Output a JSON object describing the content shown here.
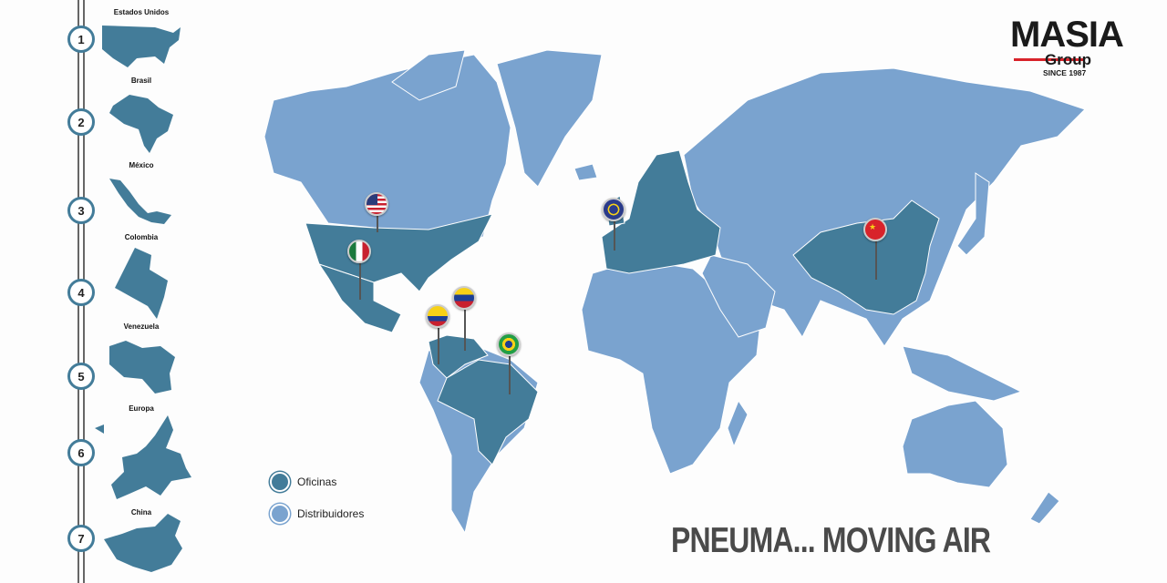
{
  "logo": {
    "name": "MASIA",
    "sub": "Group",
    "since": "SINCE 1987",
    "accent": "#d8232a"
  },
  "colors": {
    "offices": "#437c99",
    "distributors": "#7aa3cf"
  },
  "countries": [
    {
      "n": "1",
      "label": "Estados Unidos"
    },
    {
      "n": "2",
      "label": "Brasil"
    },
    {
      "n": "3",
      "label": "México"
    },
    {
      "n": "4",
      "label": "Colombia"
    },
    {
      "n": "5",
      "label": "Venezuela"
    },
    {
      "n": "6",
      "label": "Europa"
    },
    {
      "n": "7",
      "label": "China"
    }
  ],
  "legend": {
    "offices": "Oficinas",
    "distributors": "Distribuidores"
  },
  "pins": [
    "usa-flag",
    "mexico-flag",
    "colombia-flag",
    "venezuela-flag",
    "brazil-flag",
    "eu-flag",
    "china-flag"
  ],
  "tagline": "PNEUMA... MOVING AIR"
}
